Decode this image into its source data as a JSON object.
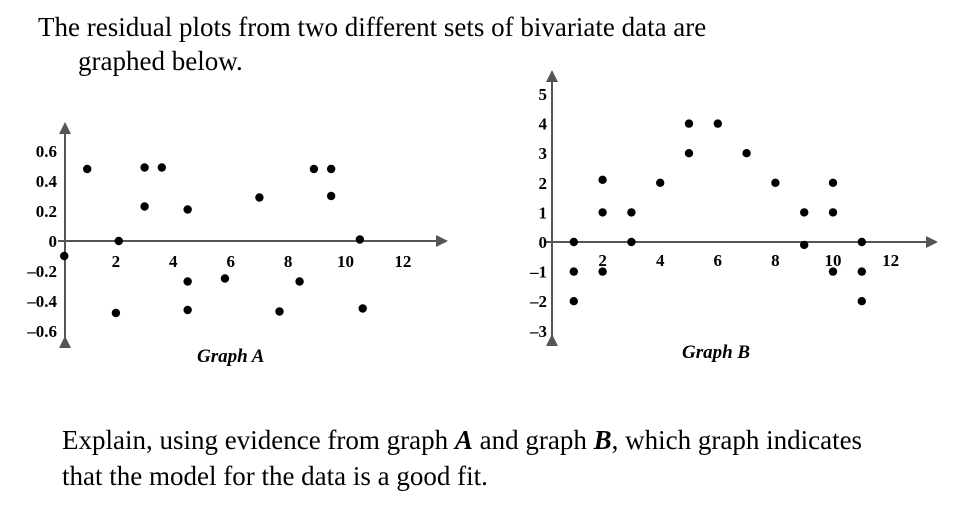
{
  "question": {
    "intro_line1": "The residual plots from two different sets of bivariate data are",
    "intro_line2": "graphed below.",
    "prompt_part1": "Explain, using evidence from graph ",
    "prompt_A": "A",
    "prompt_part2": " and graph ",
    "prompt_B": "B",
    "prompt_part3": ", which graph indicates",
    "prompt_line2": "that the model for the data is a good fit."
  },
  "chart_data": [
    {
      "type": "scatter",
      "title": "Graph A",
      "xlim": [
        0,
        13
      ],
      "ylim": [
        -0.7,
        0.7
      ],
      "x_ticks": [
        "2",
        "4",
        "6",
        "8",
        "10",
        "12"
      ],
      "y_ticks": [
        "0.6",
        "0.4",
        "0.2",
        "0",
        "-0.2",
        "-0.4",
        "-0.6"
      ],
      "points": [
        [
          1,
          0.48
        ],
        [
          0.2,
          -0.1
        ],
        [
          2.1,
          0
        ],
        [
          2,
          -0.48
        ],
        [
          3,
          0.49
        ],
        [
          3.6,
          0.49
        ],
        [
          3,
          0.23
        ],
        [
          4.5,
          0.21
        ],
        [
          4.5,
          -0.27
        ],
        [
          4.5,
          -0.46
        ],
        [
          5.8,
          -0.25
        ],
        [
          7,
          0.29
        ],
        [
          7.7,
          -0.47
        ],
        [
          8.4,
          -0.27
        ],
        [
          8.9,
          0.48
        ],
        [
          9.5,
          0.48
        ],
        [
          9.5,
          0.3
        ],
        [
          10.5,
          0.01
        ],
        [
          10.6,
          -0.45
        ]
      ]
    },
    {
      "type": "scatter",
      "title": "Graph B",
      "xlim": [
        0,
        13
      ],
      "ylim": [
        -3,
        5.5
      ],
      "x_ticks": [
        "2",
        "4",
        "6",
        "8",
        "10",
        "12"
      ],
      "y_ticks": [
        "5",
        "4",
        "3",
        "2",
        "1",
        "0",
        "-1",
        "-2",
        "-3"
      ],
      "points": [
        [
          1,
          0
        ],
        [
          1,
          -1
        ],
        [
          1,
          -2
        ],
        [
          2,
          2.1
        ],
        [
          2,
          1
        ],
        [
          2,
          -1
        ],
        [
          3,
          1
        ],
        [
          3,
          0
        ],
        [
          4,
          2
        ],
        [
          5,
          4
        ],
        [
          5,
          3
        ],
        [
          6,
          4
        ],
        [
          7,
          3
        ],
        [
          8,
          2
        ],
        [
          9,
          1
        ],
        [
          9,
          -0.1
        ],
        [
          10,
          2
        ],
        [
          10,
          1
        ],
        [
          10,
          -1
        ],
        [
          11,
          0
        ],
        [
          11,
          -1
        ],
        [
          11,
          -2
        ]
      ]
    }
  ]
}
